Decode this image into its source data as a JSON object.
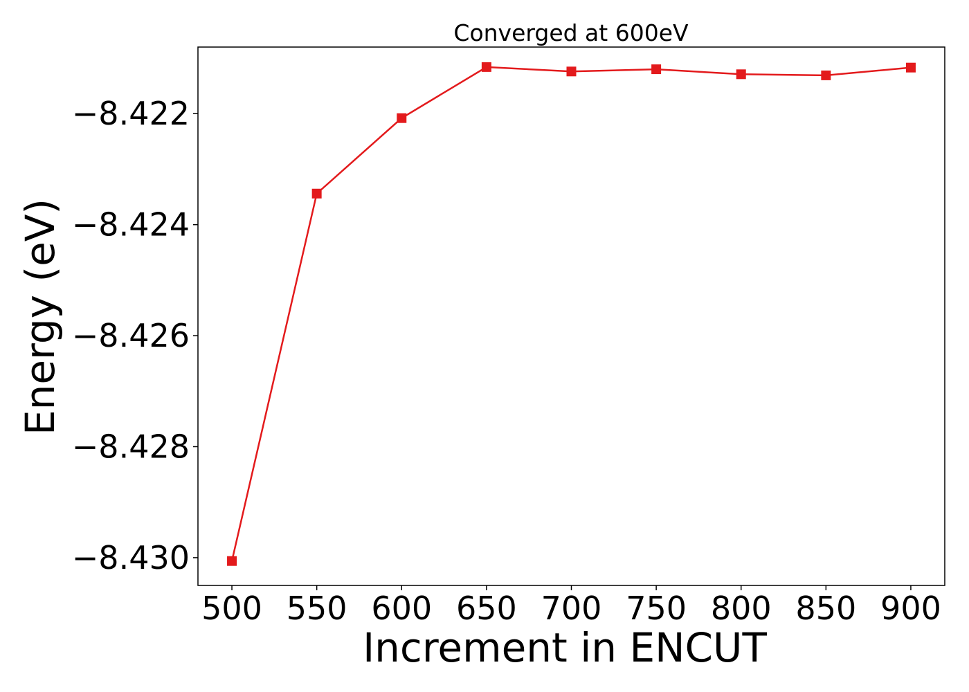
{
  "chart_data": {
    "type": "line",
    "title": "Converged at 600eV",
    "xlabel": "Increment in ENCUT",
    "ylabel": "Energy (eV)",
    "xlim": [
      480,
      920
    ],
    "ylim": [
      -8.4305,
      -8.4208
    ],
    "grid": false,
    "x": [
      500,
      550,
      600,
      650,
      700,
      750,
      800,
      850,
      900
    ],
    "series": [
      {
        "values": [
          -8.43006,
          -8.42344,
          -8.42208,
          -8.42116,
          -8.42124,
          -8.4212,
          -8.42129,
          -8.42131,
          -8.42117
        ],
        "color": "#e31a1c",
        "marker": "square"
      }
    ],
    "xticks": [
      500,
      550,
      600,
      650,
      700,
      750,
      800,
      850,
      900
    ],
    "xtick_labels": [
      "500",
      "550",
      "600",
      "650",
      "700",
      "750",
      "800",
      "850",
      "900"
    ],
    "yticks": [
      -8.422,
      -8.424,
      -8.426,
      -8.428,
      -8.43
    ],
    "ytick_labels": [
      "−8.422",
      "−8.424",
      "−8.426",
      "−8.428",
      "−8.430"
    ]
  }
}
